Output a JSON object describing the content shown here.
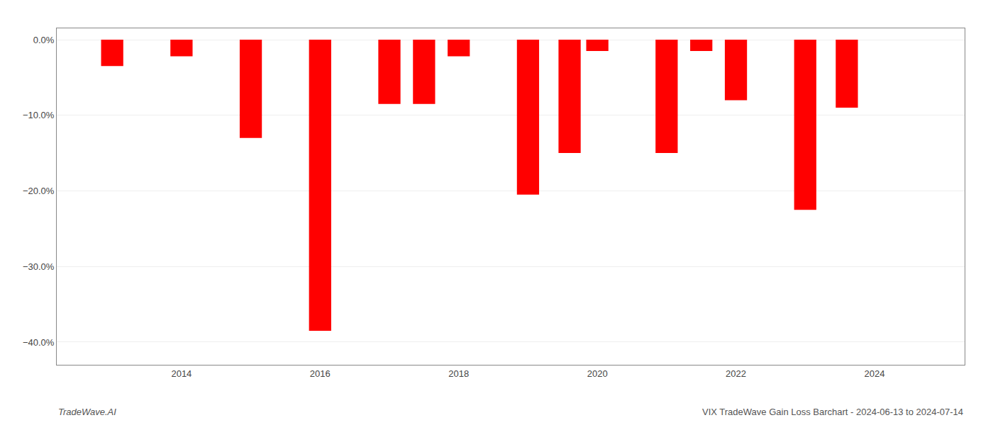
{
  "chart_data": {
    "type": "bar",
    "x": [
      2013,
      2014,
      2015,
      2016,
      2017,
      2017.5,
      2018,
      2019,
      2019.6,
      2020,
      2021,
      2021.5,
      2022,
      2023,
      2023.6
    ],
    "values": [
      -3.5,
      -2.2,
      -13.0,
      -38.5,
      -8.5,
      -8.5,
      -2.2,
      -20.5,
      -15.0,
      -1.5,
      -15.0,
      -1.5,
      -8.0,
      -22.5,
      -9.0
    ],
    "color": "#ff0000",
    "xlim": [
      2012.2,
      2025.3
    ],
    "xticks": [
      2014,
      2016,
      2018,
      2020,
      2022,
      2024
    ],
    "ylim": [
      -43,
      1.5
    ],
    "yticks": [
      {
        "value": 0,
        "label": "0.0%"
      },
      {
        "value": -10,
        "label": "−10.0%"
      },
      {
        "value": -20,
        "label": "−20.0%"
      },
      {
        "value": -30,
        "label": "−30.0%"
      },
      {
        "value": -40,
        "label": "−40.0%"
      }
    ],
    "grid": true,
    "annotations": [
      "TradeWave.AI",
      "VIX TradeWave Gain Loss Barchart - 2024-06-13 to 2024-07-14"
    ]
  }
}
